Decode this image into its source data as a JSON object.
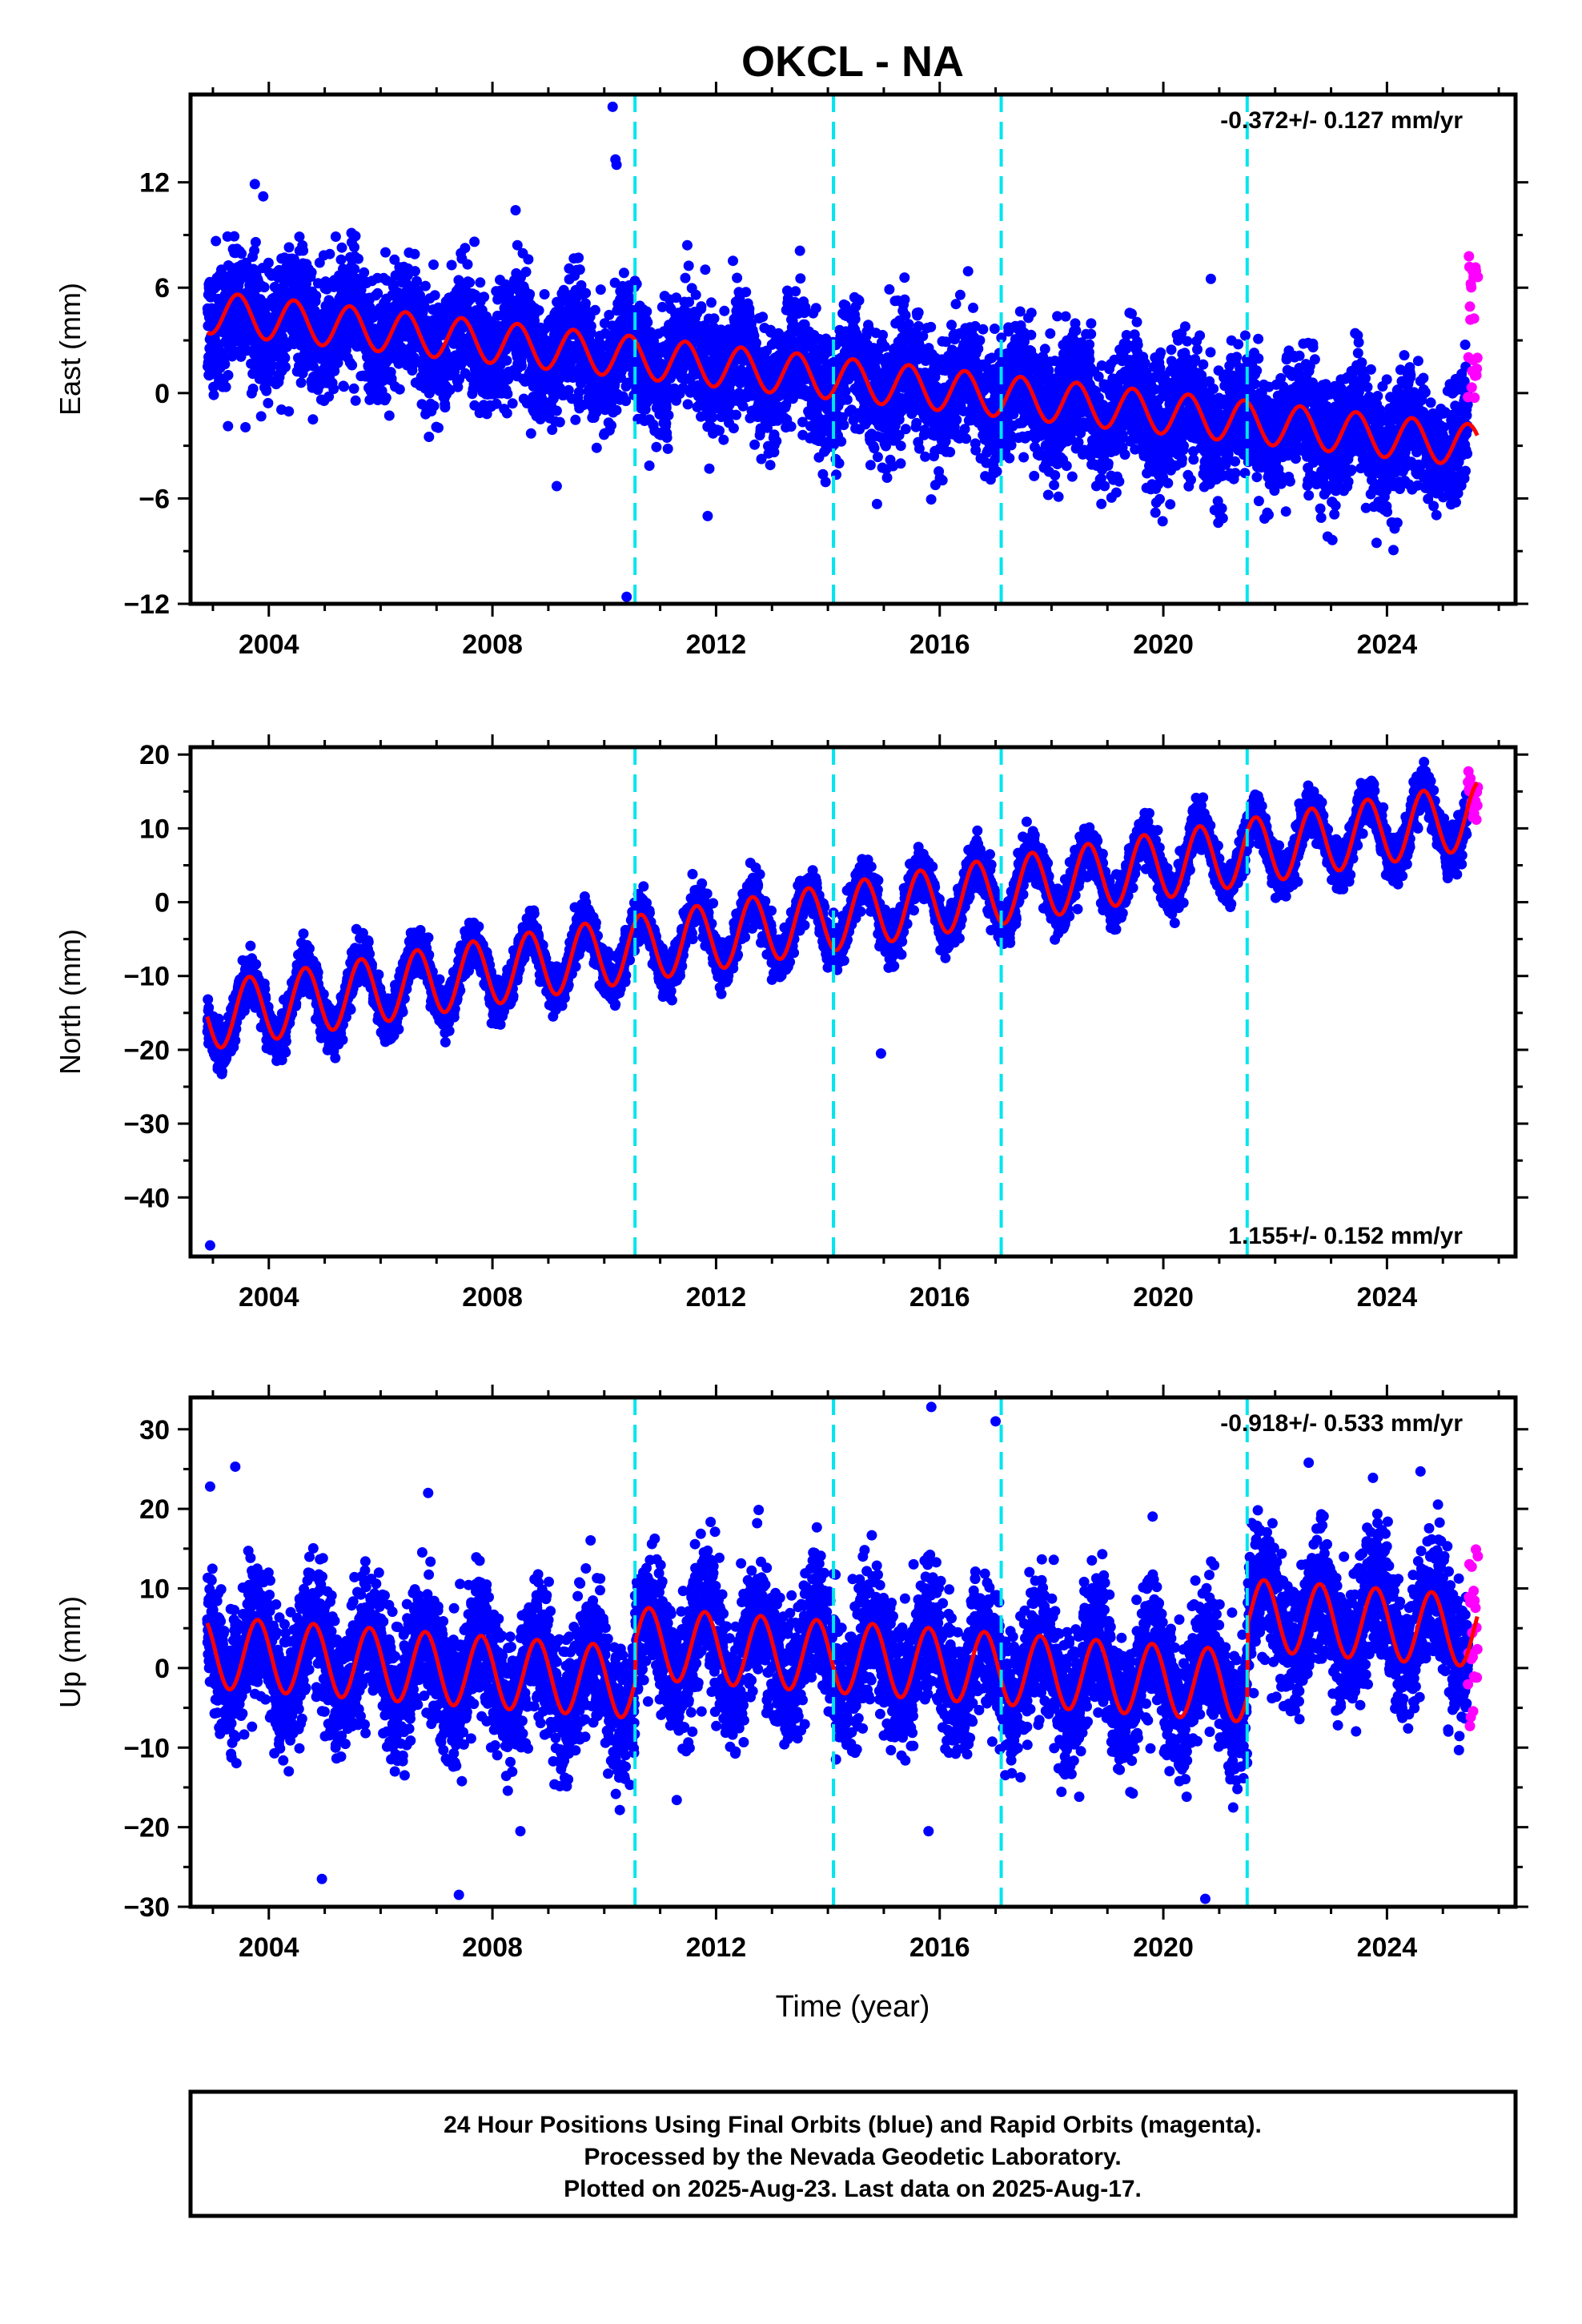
{
  "figure": {
    "title": "OKCL - NA",
    "x_axis_title": "Time (year)",
    "footer_lines": [
      "24 Hour Positions Using Final Orbits (blue) and Rapid Orbits (magenta).",
      "Processed by the Nevada Geodetic Laboratory.",
      "Plotted on 2025-Aug-23. Last data on 2025-Aug-17."
    ]
  },
  "colors": {
    "final_points": "#0000ff",
    "rapid_points": "#ff00ff",
    "model_line": "#ff0000",
    "equipment_change": "#00e5ee",
    "frame": "#000000"
  },
  "chart_data": [
    {
      "type": "scatter",
      "component": "East",
      "ylabel": "East (mm)",
      "xlim": [
        2002.6,
        2026.3
      ],
      "ylim": [
        -12,
        17
      ],
      "yticks": [
        -12,
        -6,
        0,
        6,
        12
      ],
      "xticks": [
        2004,
        2008,
        2012,
        2016,
        2020,
        2024
      ],
      "rate_label": "-0.372+/- 0.127 mm/yr",
      "rate_label_position": "top-right",
      "equipment_changes": [
        2010.55,
        2014.1,
        2017.1,
        2021.5
      ],
      "final_orbits": {
        "start": 2002.9,
        "end": 2025.45,
        "model_start_value": 4.6,
        "trend_mm_per_yr": -0.335,
        "annual_amplitude": 1.2,
        "annual_phase_year": 0.2,
        "scatter_sd": 1.7
      },
      "rapid_orbits": {
        "start": 2025.45,
        "end": 2025.63,
        "values_range": [
          -0.5,
          8
        ]
      },
      "model_line": {
        "start": 2002.9,
        "end": 2025.63
      },
      "outliers": [
        {
          "x": 2010.15,
          "y": 16.3
        },
        {
          "x": 2010.2,
          "y": 13.3
        },
        {
          "x": 2010.22,
          "y": 13.0
        },
        {
          "x": 2003.75,
          "y": 11.9
        },
        {
          "x": 2003.9,
          "y": 11.2
        },
        {
          "x": 2010.4,
          "y": -11.6
        },
        {
          "x": 2011.85,
          "y": -7.0
        },
        {
          "x": 2009.15,
          "y": -5.3
        },
        {
          "x": 2014.2,
          "y": -4.0
        },
        {
          "x": 2020.85,
          "y": 6.5
        },
        {
          "x": 2015.1,
          "y": 5.9
        },
        {
          "x": 2013.5,
          "y": 8.1
        }
      ]
    },
    {
      "type": "scatter",
      "component": "North",
      "ylabel": "North (mm)",
      "xlim": [
        2002.6,
        2026.3
      ],
      "ylim": [
        -48,
        21
      ],
      "yticks": [
        -40,
        -30,
        -20,
        -10,
        0,
        10,
        20
      ],
      "xticks": [
        2004,
        2008,
        2012,
        2016,
        2020,
        2024
      ],
      "rate_label": "1.155+/- 0.152 mm/yr",
      "rate_label_position": "bottom-right",
      "equipment_changes": [
        2010.55,
        2014.1,
        2017.1,
        2021.5
      ],
      "final_orbits": {
        "start": 2002.9,
        "end": 2025.45,
        "model_start_value": -15.5,
        "trend_mm_per_yr": 1.2,
        "annual_amplitude": 4.5,
        "annual_phase_year": 0.4,
        "scatter_sd": 1.5
      },
      "rapid_orbits": {
        "start": 2025.45,
        "end": 2025.63,
        "values_range": [
          11,
          18
        ]
      },
      "model_line": {
        "start": 2002.9,
        "end": 2025.63
      },
      "outliers": [
        {
          "x": 2002.95,
          "y": -46.5
        },
        {
          "x": 2014.95,
          "y": -20.5
        },
        {
          "x": 2013.0,
          "y": -10.5
        }
      ]
    },
    {
      "type": "scatter",
      "component": "Up",
      "ylabel": "Up (mm)",
      "xlim": [
        2002.6,
        2026.3
      ],
      "ylim": [
        -30,
        34
      ],
      "yticks": [
        -30,
        -20,
        -10,
        0,
        10,
        20,
        30
      ],
      "xticks": [
        2004,
        2008,
        2012,
        2016,
        2020,
        2024
      ],
      "rate_label": "-0.918+/- 0.533 mm/yr",
      "rate_label_position": "top-right",
      "equipment_changes": [
        2010.55,
        2014.1,
        2017.1,
        2021.5
      ],
      "final_orbits": {
        "start": 2002.9,
        "end": 2025.45,
        "model_start_value": 2.0,
        "trend_mm_per_yr": -0.5,
        "annual_amplitude": 4.5,
        "annual_phase_year": 0.55,
        "scatter_sd": 4.2,
        "offsets": [
          {
            "at": 2010.55,
            "value": 5.0
          },
          {
            "at": 2021.5,
            "value": 9.0
          }
        ]
      },
      "rapid_orbits": {
        "start": 2025.45,
        "end": 2025.63,
        "values_range": [
          -8,
          17
        ]
      },
      "model_line": {
        "start": 2002.9,
        "end": 2025.63
      },
      "outliers": [
        {
          "x": 2015.85,
          "y": 32.8
        },
        {
          "x": 2017.0,
          "y": 31.0
        },
        {
          "x": 2003.4,
          "y": 25.3
        },
        {
          "x": 2004.95,
          "y": -26.5
        },
        {
          "x": 2007.4,
          "y": -28.5
        },
        {
          "x": 2020.75,
          "y": -29.0
        },
        {
          "x": 2008.5,
          "y": -20.5
        },
        {
          "x": 2022.6,
          "y": 25.8
        },
        {
          "x": 2024.6,
          "y": 24.7
        },
        {
          "x": 2023.75,
          "y": 23.9
        },
        {
          "x": 2002.95,
          "y": 22.8
        },
        {
          "x": 2006.85,
          "y": 22.0
        },
        {
          "x": 2015.8,
          "y": -20.5
        }
      ]
    }
  ]
}
